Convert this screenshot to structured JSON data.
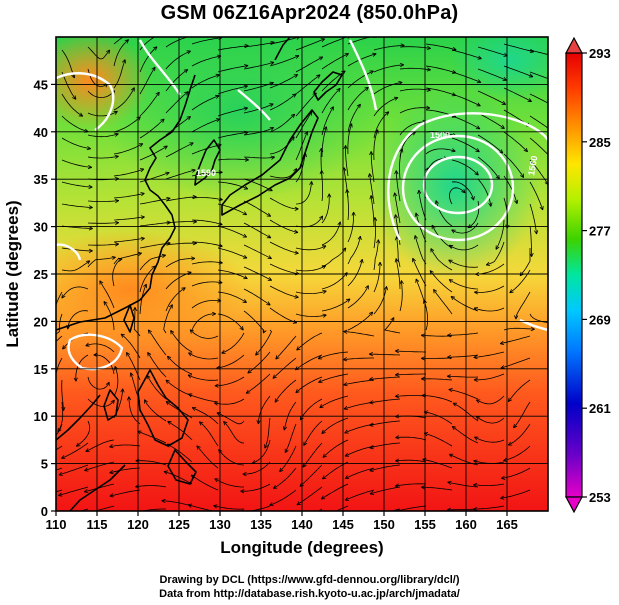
{
  "title": "GSM 06Z16Apr2024 (850.0hPa)",
  "map": {
    "lon_range": [
      110,
      170
    ],
    "lat_range": [
      0,
      50
    ],
    "xlabel": "Longitude (degrees)",
    "ylabel": "Latitude  (degrees)",
    "x_ticks": [
      "110",
      "115",
      "120",
      "125",
      "130",
      "135",
      "140",
      "145",
      "150",
      "155",
      "160",
      "165"
    ],
    "y_ticks": [
      "0",
      "5",
      "10",
      "15",
      "20",
      "25",
      "30",
      "35",
      "40",
      "45"
    ],
    "field": "temperature",
    "streamlines": true,
    "contour_labels": [
      "1590",
      "1500",
      "1560"
    ]
  },
  "colorbar": {
    "ticks": [
      "293",
      "285",
      "277",
      "269",
      "261",
      "253"
    ],
    "colors": [
      "#e60000",
      "#ff3c00",
      "#ff9600",
      "#ffe600",
      "#b4f000",
      "#3cd200",
      "#00e6a0",
      "#00c8ff",
      "#0078ff",
      "#0000c8",
      "#6400c8",
      "#e600c8"
    ]
  },
  "credits": {
    "line1": "Drawing by DCL (https://www.gfd-dennou.org/library/dcl/)",
    "line2": "Data from http://database.rish.kyoto-u.ac.jp/arch/jmadata/"
  }
}
